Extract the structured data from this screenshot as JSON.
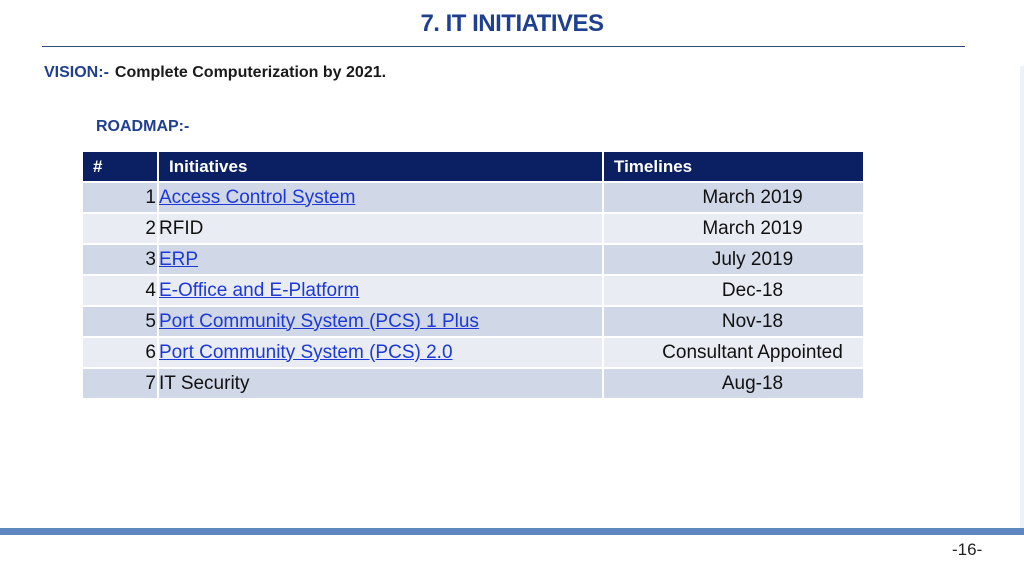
{
  "header": {
    "title": "7. IT INITIATIVES"
  },
  "vision": {
    "label": "VISION:-",
    "text": "Complete Computerization by 2021."
  },
  "roadmap": {
    "label": "ROADMAP:-"
  },
  "table": {
    "headers": [
      "#",
      "Initiatives",
      "Timelines"
    ],
    "rows": [
      {
        "num": "1",
        "initiative": "Access Control System",
        "timeline": "March 2019",
        "is_link": true
      },
      {
        "num": "2",
        "initiative": "RFID",
        "timeline": "March 2019",
        "is_link": false
      },
      {
        "num": "3",
        "initiative": "ERP",
        "timeline": "July 2019",
        "is_link": true
      },
      {
        "num": "4",
        "initiative": "E-Office and E-Platform",
        "timeline": "Dec-18",
        "is_link": true
      },
      {
        "num": "5",
        "initiative": "Port Community System (PCS) 1 Plus",
        "timeline": "Nov-18",
        "is_link": true
      },
      {
        "num": "6",
        "initiative": "Port Community System (PCS) 2.0",
        "timeline": "Consultant Appointed",
        "is_link": true
      },
      {
        "num": "7",
        "initiative": "IT Security",
        "timeline": "Aug-18",
        "is_link": false
      }
    ]
  },
  "footer": {
    "page_number": "-16-"
  },
  "colors": {
    "title": "#1F3F8F",
    "header_bg": "#0B1F63",
    "row_odd": "#D0D7E7",
    "row_even": "#E9ECF3",
    "link": "#1C39D8",
    "footer_bar": "#5F86BE"
  }
}
